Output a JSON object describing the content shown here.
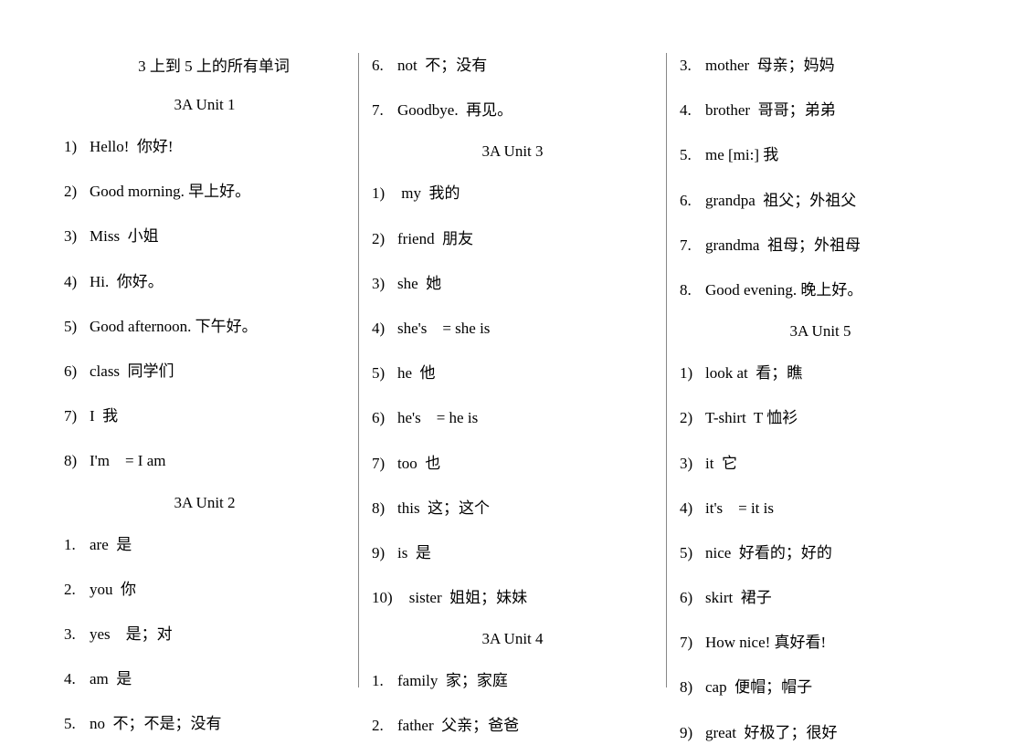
{
  "document": {
    "title": "3 上到 5 上的所有单词",
    "font_family": "Times New Roman, SimSun, serif",
    "font_size_pt": 13,
    "text_color": "#000000",
    "background_color": "#ffffff",
    "divider_color": "#888888"
  },
  "columns": [
    {
      "blocks": [
        {
          "type": "title",
          "text": "3 上到 5 上的所有单词"
        },
        {
          "type": "heading",
          "text": "3A Unit 1"
        },
        {
          "type": "item",
          "num": "1)",
          "text": "Hello!  你好!"
        },
        {
          "type": "item",
          "num": "2)",
          "text": "Good morning. 早上好。"
        },
        {
          "type": "item",
          "num": "3)",
          "text": "Miss  小姐"
        },
        {
          "type": "item",
          "num": "4)",
          "text": "Hi.  你好。"
        },
        {
          "type": "item",
          "num": "5)",
          "text": "Good afternoon. 下午好。"
        },
        {
          "type": "item",
          "num": "6)",
          "text": "class  同学们"
        },
        {
          "type": "item",
          "num": "7)",
          "text": "I  我"
        },
        {
          "type": "item",
          "num": "8)",
          "text": "I'm    = I am"
        },
        {
          "type": "heading",
          "text": "3A Unit 2"
        },
        {
          "type": "item",
          "num": "1.",
          "text": "are  是"
        },
        {
          "type": "item",
          "num": "2.",
          "text": "you  你"
        },
        {
          "type": "item",
          "num": "3.",
          "text": "yes    是；对"
        },
        {
          "type": "item",
          "num": "4.",
          "text": "am  是"
        },
        {
          "type": "item",
          "num": "5.",
          "text": "no  不；不是；没有"
        }
      ]
    },
    {
      "blocks": [
        {
          "type": "item",
          "num": "6.",
          "text": "not  不；没有"
        },
        {
          "type": "item",
          "num": "7.",
          "text": "Goodbye.  再见。"
        },
        {
          "type": "heading",
          "text": "3A Unit 3"
        },
        {
          "type": "item",
          "num": "1)",
          "text": " my  我的"
        },
        {
          "type": "item",
          "num": "2)",
          "text": "friend  朋友"
        },
        {
          "type": "item",
          "num": "3)",
          "text": "she  她"
        },
        {
          "type": "item",
          "num": "4)",
          "text": "she's    = she is"
        },
        {
          "type": "item",
          "num": "5)",
          "text": "he  他"
        },
        {
          "type": "item",
          "num": "6)",
          "text": "he's    = he is"
        },
        {
          "type": "item",
          "num": "7)",
          "text": "too  也"
        },
        {
          "type": "item",
          "num": "8)",
          "text": "this  这；这个"
        },
        {
          "type": "item",
          "num": "9)",
          "text": "is  是"
        },
        {
          "type": "item",
          "num": "10)",
          "text": "   sister  姐姐；妹妹"
        },
        {
          "type": "heading",
          "text": "3A Unit 4"
        },
        {
          "type": "item",
          "num": "1.",
          "text": "family  家；家庭"
        },
        {
          "type": "item",
          "num": "2.",
          "text": "father  父亲；爸爸"
        }
      ]
    },
    {
      "blocks": [
        {
          "type": "item",
          "num": "3.",
          "text": "mother  母亲；妈妈"
        },
        {
          "type": "item",
          "num": "4.",
          "text": "brother  哥哥；弟弟"
        },
        {
          "type": "item",
          "num": "5.",
          "text": "me [mi:] 我"
        },
        {
          "type": "item",
          "num": "6.",
          "text": "grandpa  祖父；外祖父"
        },
        {
          "type": "item",
          "num": "7.",
          "text": "grandma  祖母；外祖母"
        },
        {
          "type": "item",
          "num": "8.",
          "text": "Good evening. 晚上好。"
        },
        {
          "type": "heading",
          "text": "3A Unit 5"
        },
        {
          "type": "item",
          "num": "1)",
          "text": "look at  看；瞧"
        },
        {
          "type": "item",
          "num": "2)",
          "text": "T-shirt  T 恤衫"
        },
        {
          "type": "item",
          "num": "3)",
          "text": "it  它"
        },
        {
          "type": "item",
          "num": "4)",
          "text": "it's    = it is"
        },
        {
          "type": "item",
          "num": "5)",
          "text": "nice  好看的；好的"
        },
        {
          "type": "item",
          "num": "6)",
          "text": "skirt  裙子"
        },
        {
          "type": "item",
          "num": "7)",
          "text": "How nice! 真好看!"
        },
        {
          "type": "item",
          "num": "8)",
          "text": "cap  便帽；帽子"
        },
        {
          "type": "item",
          "num": "9)",
          "text": "great  好极了；很好"
        }
      ]
    }
  ]
}
